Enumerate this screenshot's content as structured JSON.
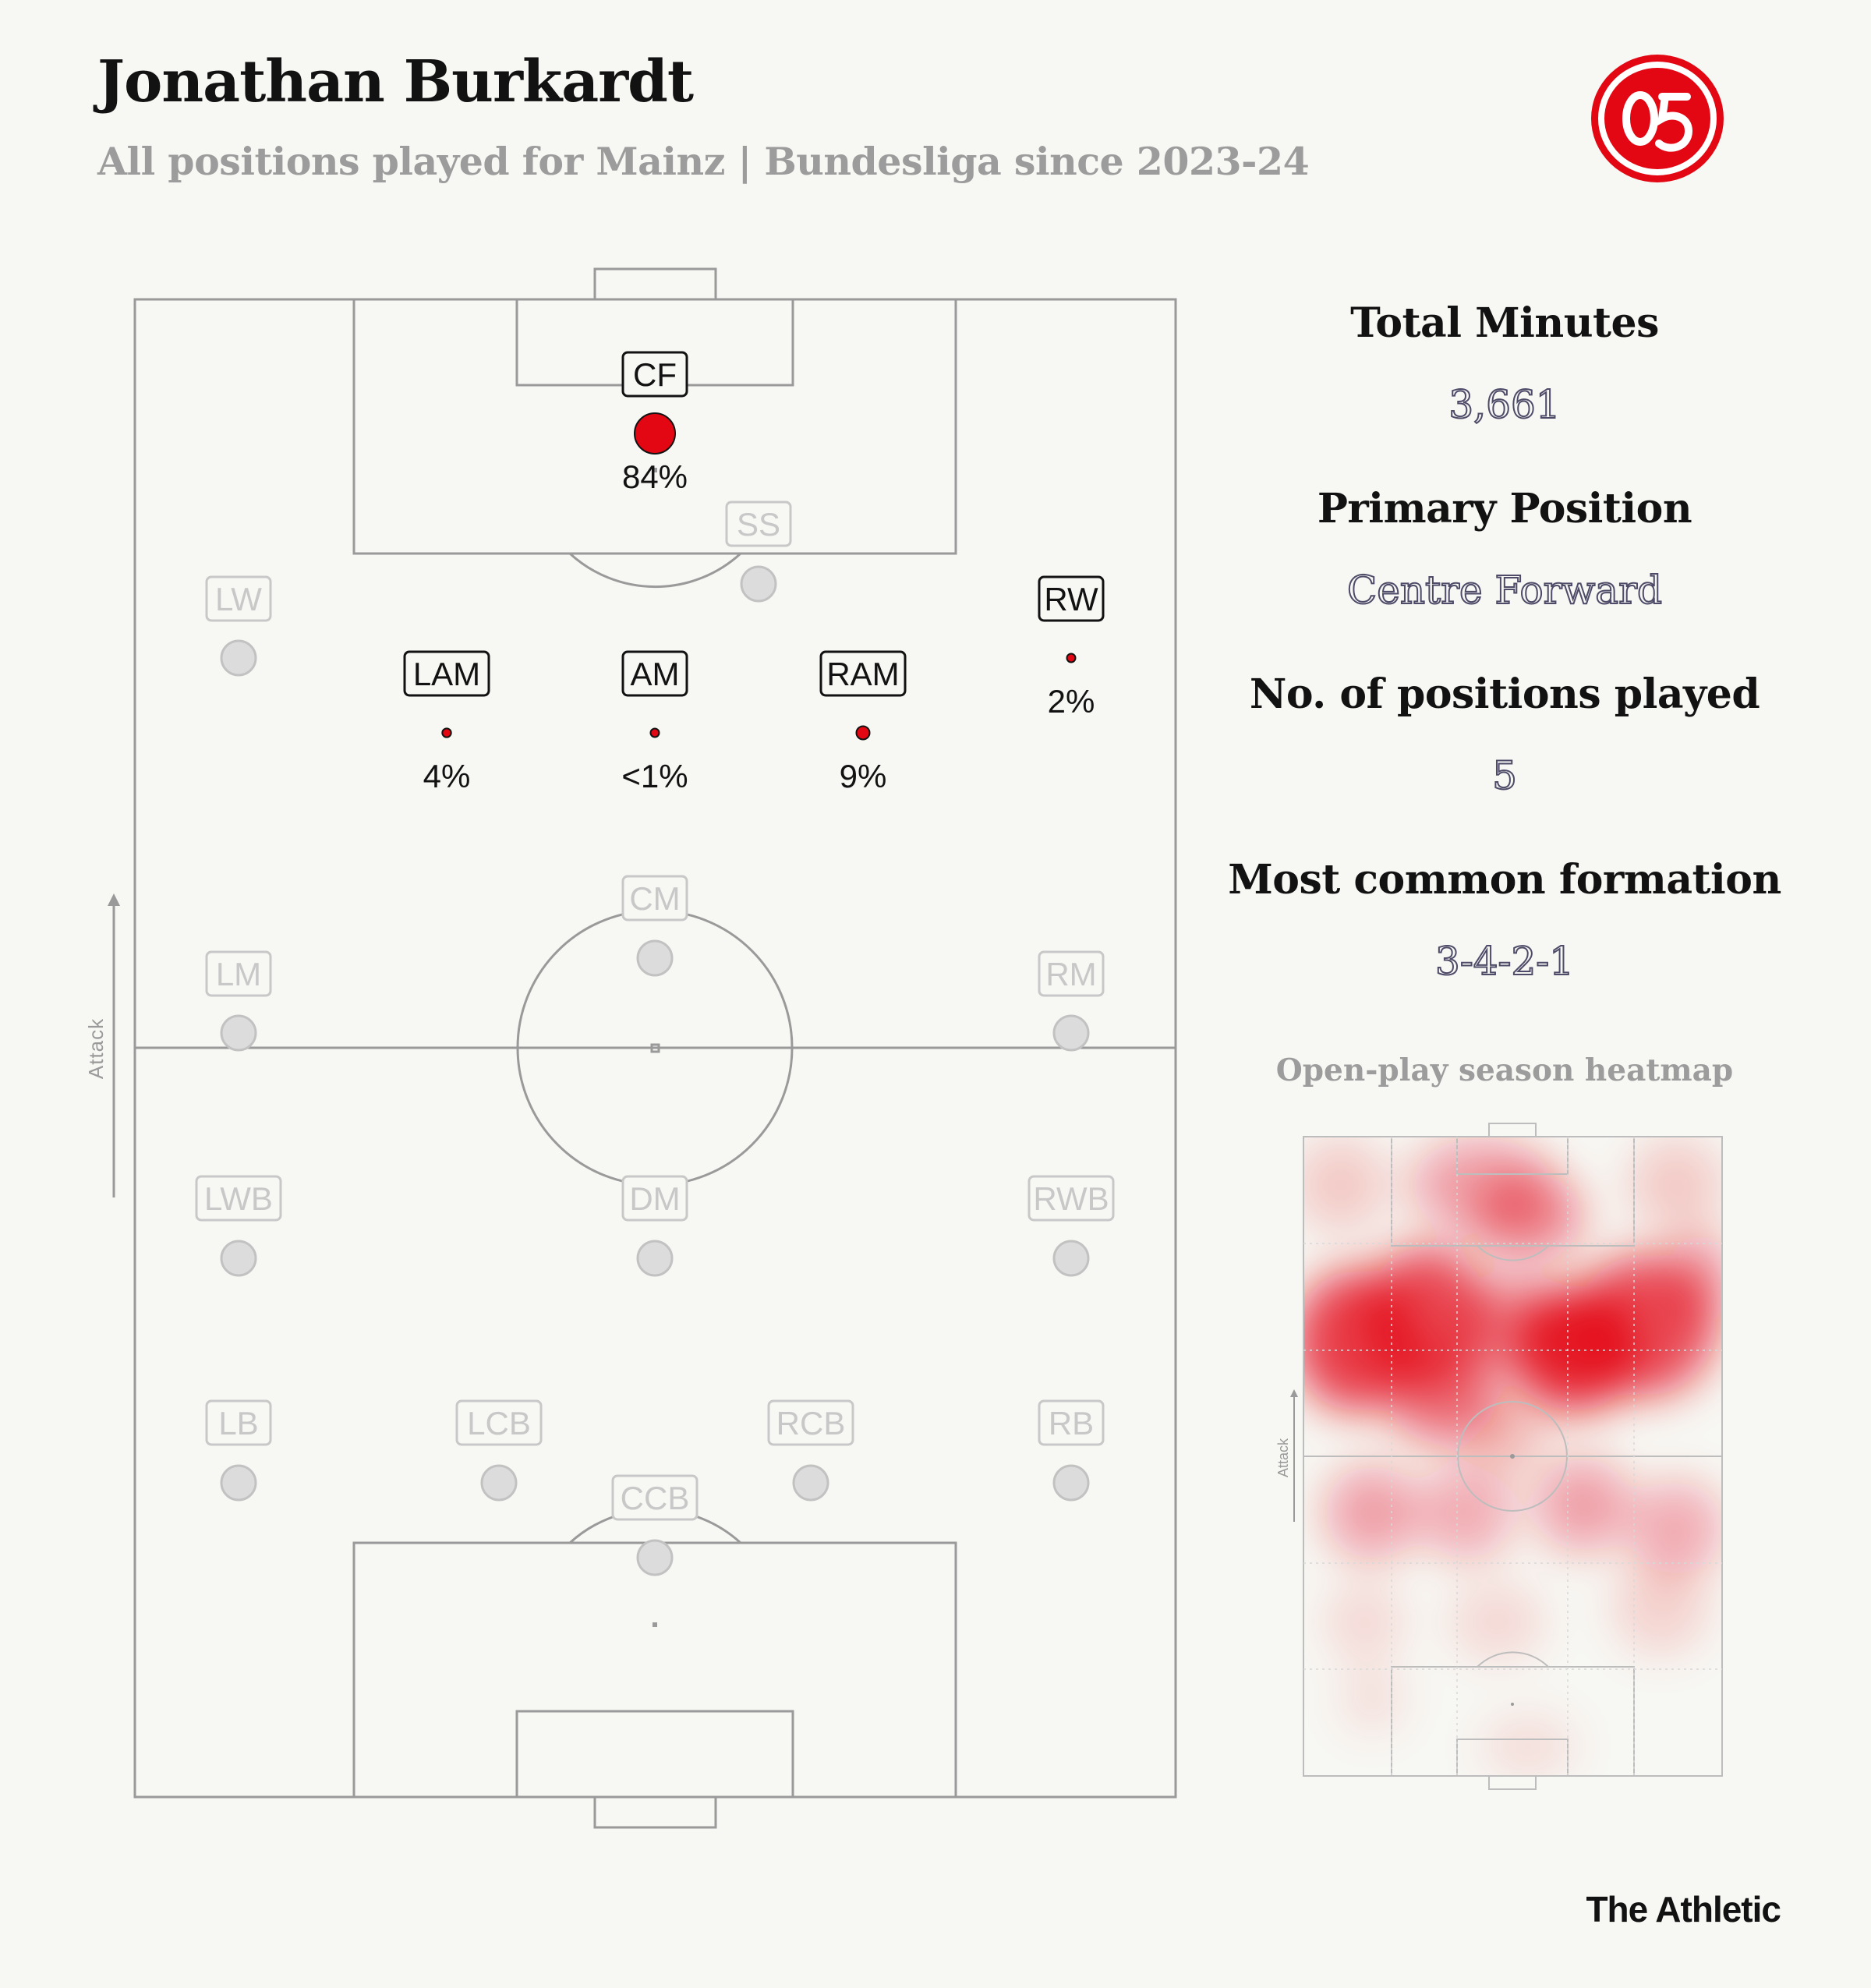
{
  "header": {
    "title": "Jonathan Burkardt",
    "subtitle": "All positions played for Mainz | Bundesliga since 2023-24"
  },
  "logo": {
    "icon": "mainz-05-crest",
    "color": "#e30613"
  },
  "pitch": {
    "attack_label": "Attack",
    "positions": [
      {
        "label": "CF",
        "active": true,
        "share": "84%",
        "share_value": 84
      },
      {
        "label": "SS",
        "active": false
      },
      {
        "label": "LW",
        "active": false
      },
      {
        "label": "RW",
        "active": true,
        "share": "2%",
        "share_value": 2
      },
      {
        "label": "LAM",
        "active": true,
        "share": "4%",
        "share_value": 4
      },
      {
        "label": "AM",
        "active": true,
        "share": "<1%",
        "share_value": 0.5
      },
      {
        "label": "RAM",
        "active": true,
        "share": "9%",
        "share_value": 9
      },
      {
        "label": "CM",
        "active": false
      },
      {
        "label": "LM",
        "active": false
      },
      {
        "label": "RM",
        "active": false
      },
      {
        "label": "LWB",
        "active": false
      },
      {
        "label": "DM",
        "active": false
      },
      {
        "label": "RWB",
        "active": false
      },
      {
        "label": "LB",
        "active": false
      },
      {
        "label": "LCB",
        "active": false
      },
      {
        "label": "RCB",
        "active": false
      },
      {
        "label": "RB",
        "active": false
      },
      {
        "label": "CCB",
        "active": false
      }
    ]
  },
  "stats": [
    {
      "label": "Total Minutes",
      "value": "3,661"
    },
    {
      "label": "Primary Position",
      "value": "Centre Forward"
    },
    {
      "label": "No. of positions played",
      "value": "5"
    },
    {
      "label": "Most common formation",
      "value": "3-4-2-1"
    }
  ],
  "heatmap": {
    "title": "Open-play season heatmap",
    "attack_label": "Attack"
  },
  "footer": {
    "brand": "The Athletic"
  },
  "colors": {
    "background": "#f7f7f3",
    "accent_red": "#e30613",
    "inactive_grey": "#c8c8c8",
    "line_grey": "#9a9a9a",
    "stat_value": "#4d4b68"
  }
}
